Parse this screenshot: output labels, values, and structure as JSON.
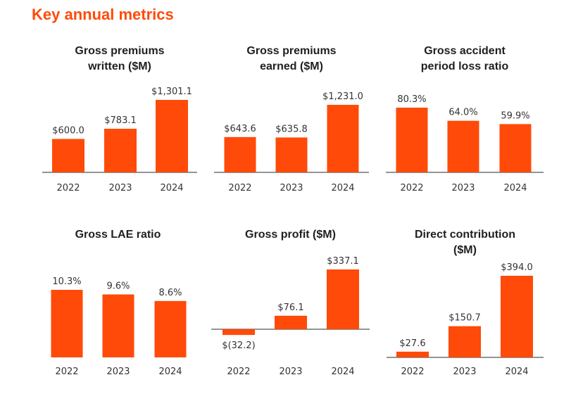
{
  "page": {
    "title": "Key annual metrics"
  },
  "colors": {
    "bar": "#ff4a0a",
    "title": "#ff4a0a",
    "axis": "#555555",
    "text": "#333333"
  },
  "chart_data": [
    {
      "type": "bar",
      "title_lines": [
        "Gross premiums",
        "written ($M)"
      ],
      "categories": [
        "2022",
        "2023",
        "2024"
      ],
      "values": [
        600.0,
        783.1,
        1301.1
      ],
      "labels": [
        "$600.0",
        "$783.1",
        "$1,301.1"
      ],
      "ylim": [
        0,
        1301.1
      ]
    },
    {
      "type": "bar",
      "title_lines": [
        "Gross premiums",
        "earned ($M)"
      ],
      "categories": [
        "2022",
        "2023",
        "2024"
      ],
      "values": [
        643.6,
        635.8,
        1231.0
      ],
      "labels": [
        "$643.6",
        "$635.8",
        "$1,231.0"
      ],
      "ylim": [
        0,
        1231.0
      ]
    },
    {
      "type": "bar",
      "title_lines": [
        "Gross accident",
        "period loss ratio"
      ],
      "categories": [
        "2022",
        "2023",
        "2024"
      ],
      "values": [
        80.3,
        64.0,
        59.9
      ],
      "labels": [
        "80.3%",
        "64.0%",
        "59.9%"
      ],
      "ylim": [
        0,
        80.3
      ]
    },
    {
      "type": "bar",
      "title_lines": [
        "Gross LAE ratio"
      ],
      "categories": [
        "2022",
        "2023",
        "2024"
      ],
      "values": [
        10.3,
        9.6,
        8.6
      ],
      "labels": [
        "10.3%",
        "9.6%",
        "8.6%"
      ],
      "ylim": [
        0,
        10.3
      ]
    },
    {
      "type": "bar",
      "title_lines": [
        "Gross profit ($M)"
      ],
      "categories": [
        "2022",
        "2023",
        "2024"
      ],
      "values": [
        -32.2,
        76.1,
        337.1
      ],
      "labels": [
        "$(32.2)",
        "$76.1",
        "$337.1"
      ],
      "ylim": [
        -32.2,
        337.1
      ]
    },
    {
      "type": "bar",
      "title_lines": [
        "Direct contribution",
        "($M)"
      ],
      "categories": [
        "2022",
        "2023",
        "2024"
      ],
      "values": [
        27.6,
        150.7,
        394.0
      ],
      "labels": [
        "$27.6",
        "$150.7",
        "$394.0"
      ],
      "ylim": [
        0,
        394.0
      ]
    }
  ]
}
